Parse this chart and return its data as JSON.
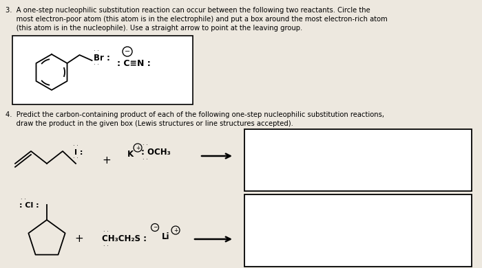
{
  "background_color": "#ede8df",
  "q3_line1": "3.  A one-step nucleophilic substitution reaction can occur between the following two reactants. Circle the",
  "q3_line2": "     most electron-poor atom (this atom is in the electrophile) and put a box around the most electron-rich atom",
  "q3_line3": "     (this atom is in the nucleophile). Use a straight arrow to point at the leaving group.",
  "q4_line1": "4.  Predict the carbon-containing product of each of the following one-step nucleophilic substitution reactions,",
  "q4_line2": "     draw the product in the given box (Lewis structures or line structures accepted)."
}
